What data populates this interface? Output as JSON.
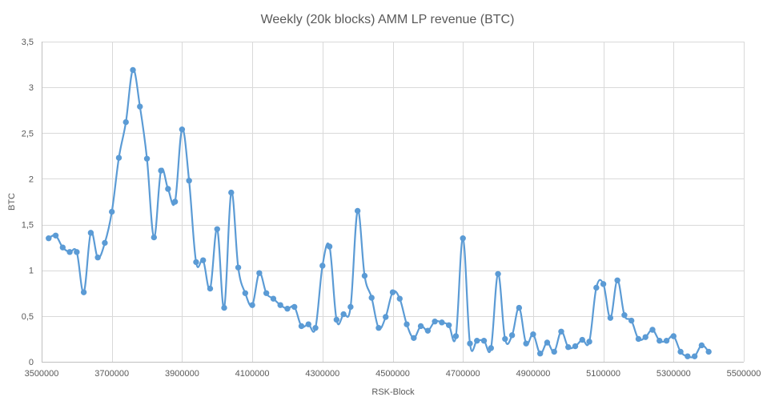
{
  "chart_data": {
    "type": "line",
    "title": "Weekly (20k blocks) AMM LP revenue (BTC)",
    "xlabel": "RSK-Block",
    "ylabel": "BTC",
    "xlim": [
      3500000,
      5500000
    ],
    "ylim": [
      0,
      3.5
    ],
    "x_ticks": [
      3500000,
      3700000,
      3900000,
      4100000,
      4300000,
      4500000,
      4700000,
      4900000,
      5100000,
      5300000,
      5500000
    ],
    "x_tick_labels": [
      "3500000",
      "3700000",
      "3900000",
      "4100000",
      "4300000",
      "4500000",
      "4700000",
      "4900000",
      "5100000",
      "5300000",
      "5500000"
    ],
    "y_ticks": [
      0,
      0.5,
      1,
      1.5,
      2,
      2.5,
      3,
      3.5
    ],
    "y_tick_labels": [
      "0",
      "0,5",
      "1",
      "1,5",
      "2",
      "2,5",
      "3",
      "3,5"
    ],
    "grid": true,
    "legend": "none",
    "series": [
      {
        "name": "AMM LP revenue",
        "color": "#5b9bd5",
        "x": [
          3520000,
          3540000,
          3560000,
          3580000,
          3600000,
          3620000,
          3640000,
          3660000,
          3680000,
          3700000,
          3720000,
          3740000,
          3760000,
          3780000,
          3800000,
          3820000,
          3840000,
          3860000,
          3880000,
          3900000,
          3920000,
          3940000,
          3960000,
          3980000,
          4000000,
          4020000,
          4040000,
          4060000,
          4080000,
          4100000,
          4120000,
          4140000,
          4160000,
          4180000,
          4200000,
          4220000,
          4240000,
          4260000,
          4280000,
          4300000,
          4320000,
          4340000,
          4360000,
          4380000,
          4400000,
          4420000,
          4440000,
          4460000,
          4480000,
          4500000,
          4520000,
          4540000,
          4560000,
          4580000,
          4600000,
          4620000,
          4640000,
          4660000,
          4680000,
          4700000,
          4720000,
          4740000,
          4760000,
          4780000,
          4800000,
          4820000,
          4840000,
          4860000,
          4880000,
          4900000,
          4920000,
          4940000,
          4960000,
          4980000,
          5000000,
          5020000,
          5040000,
          5060000,
          5080000,
          5100000,
          5120000,
          5140000,
          5160000,
          5180000,
          5200000,
          5220000,
          5240000,
          5260000,
          5280000,
          5300000,
          5320000,
          5340000,
          5360000,
          5380000,
          5400000
        ],
        "values": [
          1.35,
          1.38,
          1.25,
          1.2,
          1.2,
          0.76,
          1.41,
          1.14,
          1.3,
          1.64,
          2.23,
          2.62,
          3.19,
          2.79,
          2.22,
          1.36,
          2.09,
          1.89,
          1.75,
          2.54,
          1.98,
          1.09,
          1.11,
          0.8,
          1.45,
          0.59,
          1.85,
          1.03,
          0.75,
          0.62,
          0.97,
          0.75,
          0.69,
          0.62,
          0.58,
          0.6,
          0.39,
          0.41,
          0.37,
          1.05,
          1.26,
          0.46,
          0.52,
          0.6,
          1.65,
          0.94,
          0.7,
          0.37,
          0.49,
          0.76,
          0.69,
          0.41,
          0.26,
          0.39,
          0.34,
          0.44,
          0.43,
          0.4,
          0.28,
          1.35,
          0.2,
          0.23,
          0.23,
          0.15,
          0.96,
          0.25,
          0.29,
          0.59,
          0.2,
          0.3,
          0.09,
          0.21,
          0.11,
          0.33,
          0.16,
          0.17,
          0.24,
          0.22,
          0.81,
          0.85,
          0.48,
          0.89,
          0.51,
          0.45,
          0.25,
          0.27,
          0.35,
          0.23,
          0.23,
          0.28,
          0.11,
          0.06,
          0.06,
          0.18,
          0.11
        ]
      }
    ]
  }
}
